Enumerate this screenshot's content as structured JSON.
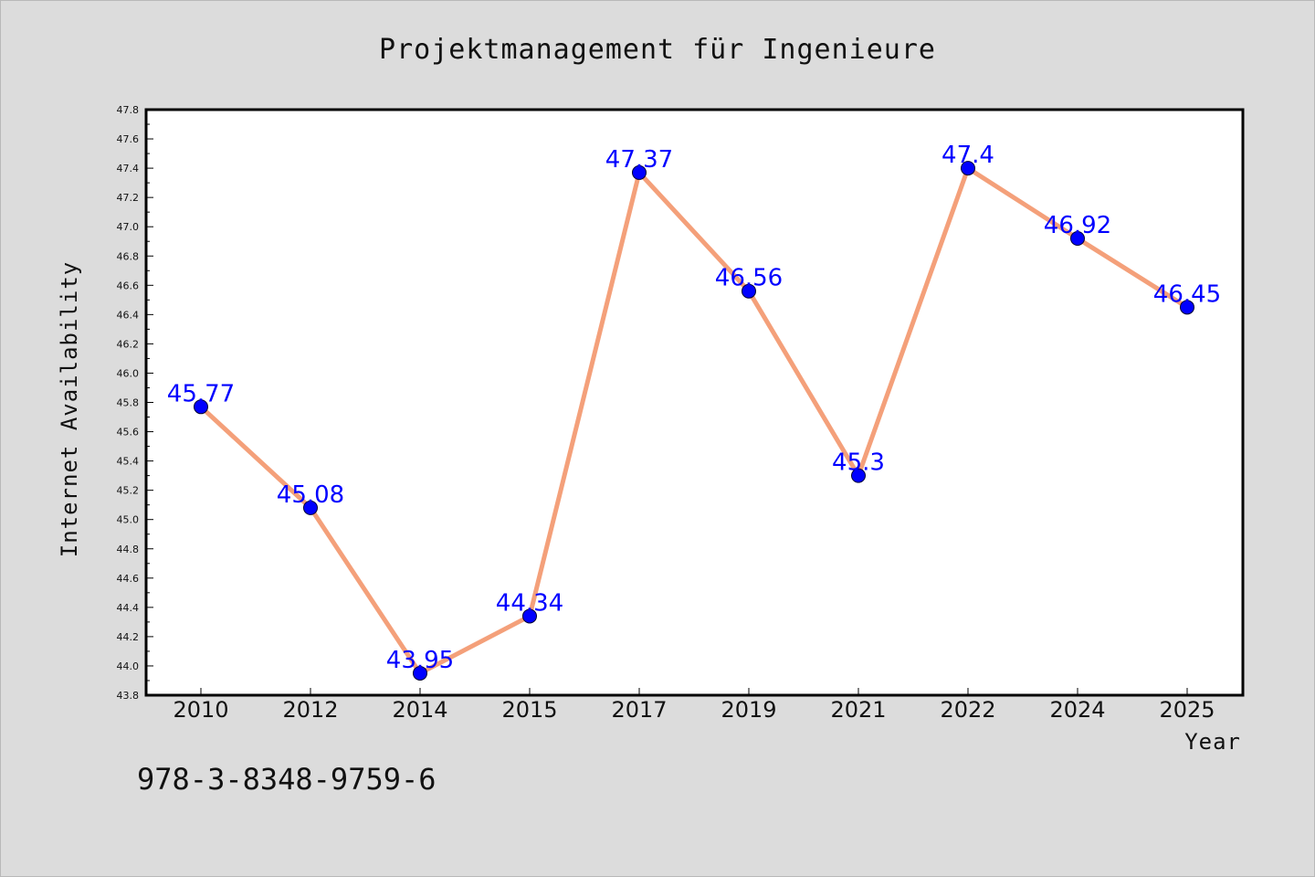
{
  "colors": {
    "background": "#dcdcdc",
    "plot_area": "#ffffff",
    "line": "#f4a07a",
    "marker": "#0000ff",
    "data_label": "#0000ff"
  },
  "footer": {
    "isbn": "978-3-8348-9759-6"
  },
  "chart_data": {
    "type": "line",
    "title": "Projektmanagement für Ingenieure",
    "xlabel": "Year",
    "ylabel": "Internet Availability",
    "categories": [
      "2010",
      "2012",
      "2014",
      "2015",
      "2017",
      "2019",
      "2021",
      "2022",
      "2024",
      "2025"
    ],
    "series": [
      {
        "values": [
          45.77,
          45.08,
          43.95,
          44.34,
          47.37,
          46.56,
          45.3,
          47.4,
          46.92,
          46.45
        ]
      }
    ],
    "data_labels": [
      "45.77",
      "45.08",
      "43.95",
      "44.34",
      "47.37",
      "46.56",
      "45.3",
      "47.4",
      "46.92",
      "46.45"
    ],
    "ylim": [
      43.8,
      47.8
    ],
    "yticks": [
      "43.8",
      "44.0",
      "44.2",
      "44.4",
      "44.6",
      "44.8",
      "45.0",
      "45.2",
      "45.4",
      "45.6",
      "45.8",
      "46.0",
      "46.2",
      "46.4",
      "46.6",
      "46.8",
      "47.0",
      "47.2",
      "47.4",
      "47.6",
      "47.8"
    ],
    "grid": false,
    "legend": "none"
  }
}
